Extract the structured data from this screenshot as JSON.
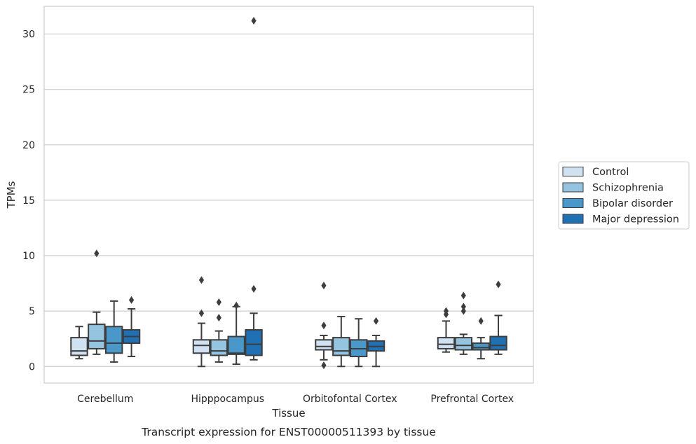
{
  "chart_data": {
    "type": "box",
    "xlabel": "Tissue",
    "ylabel": "TPMs",
    "caption": "Transcript expression for ENST00000511393 by tissue",
    "categories": [
      "Cerebellum",
      "Hipppocampus",
      "Orbitofontal Cortex",
      "Prefrontal Cortex"
    ],
    "ylim": [
      -1.5,
      32.5
    ],
    "yticks": [
      0,
      5,
      10,
      15,
      20,
      25,
      30
    ],
    "grid": "horizontal",
    "legend_position": "right",
    "series": [
      {
        "name": "Control",
        "color": "#d0e1f2",
        "boxes": [
          {
            "whislo": 0.7,
            "q1": 1.0,
            "med": 1.4,
            "q3": 2.6,
            "whishi": 3.6,
            "fliers": []
          },
          {
            "whislo": 0.0,
            "q1": 1.2,
            "med": 1.9,
            "q3": 2.4,
            "whishi": 3.9,
            "fliers": [
              4.8,
              7.8
            ]
          },
          {
            "whislo": 0.6,
            "q1": 1.5,
            "med": 1.8,
            "q3": 2.4,
            "whishi": 2.8,
            "fliers": [
              0.1,
              3.7,
              7.3
            ]
          },
          {
            "whislo": 1.3,
            "q1": 1.6,
            "med": 2.0,
            "q3": 2.6,
            "whishi": 4.1,
            "fliers": [
              4.7,
              5.0
            ]
          }
        ]
      },
      {
        "name": "Schizophrenia",
        "color": "#94c4df",
        "boxes": [
          {
            "whislo": 1.1,
            "q1": 1.6,
            "med": 2.3,
            "q3": 3.8,
            "whishi": 4.9,
            "fliers": [
              10.2
            ]
          },
          {
            "whislo": 0.4,
            "q1": 1.0,
            "med": 1.4,
            "q3": 2.4,
            "whishi": 3.2,
            "fliers": [
              4.4,
              5.8
            ]
          },
          {
            "whislo": 0.0,
            "q1": 1.0,
            "med": 1.4,
            "q3": 2.6,
            "whishi": 4.5,
            "fliers": []
          },
          {
            "whislo": 1.1,
            "q1": 1.5,
            "med": 1.9,
            "q3": 2.6,
            "whishi": 2.9,
            "fliers": [
              5.0,
              5.4,
              6.4
            ]
          }
        ]
      },
      {
        "name": "Bipolar disorder",
        "color": "#4a98c9",
        "boxes": [
          {
            "whislo": 0.4,
            "q1": 1.2,
            "med": 2.1,
            "q3": 3.6,
            "whishi": 5.9,
            "fliers": []
          },
          {
            "whislo": 0.2,
            "q1": 1.1,
            "med": 1.2,
            "q3": 2.7,
            "whishi": 5.4,
            "fliers": [
              5.5
            ]
          },
          {
            "whislo": 0.0,
            "q1": 0.9,
            "med": 1.6,
            "q3": 2.4,
            "whishi": 4.3,
            "fliers": []
          },
          {
            "whislo": 0.7,
            "q1": 1.5,
            "med": 1.7,
            "q3": 2.1,
            "whishi": 2.6,
            "fliers": [
              4.1
            ]
          }
        ]
      },
      {
        "name": "Major depression",
        "color": "#2070b4",
        "boxes": [
          {
            "whislo": 0.9,
            "q1": 2.1,
            "med": 2.7,
            "q3": 3.3,
            "whishi": 5.2,
            "fliers": [
              6.0
            ]
          },
          {
            "whislo": 0.6,
            "q1": 1.0,
            "med": 2.0,
            "q3": 3.3,
            "whishi": 4.8,
            "fliers": [
              7.0,
              31.2
            ]
          },
          {
            "whislo": 0.0,
            "q1": 1.4,
            "med": 1.8,
            "q3": 2.3,
            "whishi": 2.8,
            "fliers": [
              4.1
            ]
          },
          {
            "whislo": 1.1,
            "q1": 1.5,
            "med": 1.9,
            "q3": 2.7,
            "whishi": 4.6,
            "fliers": [
              7.4
            ]
          }
        ]
      }
    ]
  }
}
